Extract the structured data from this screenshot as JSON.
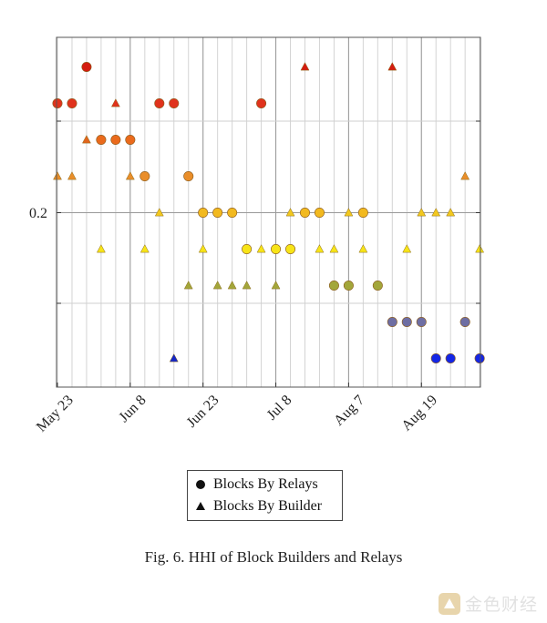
{
  "chart_data": {
    "type": "scatter",
    "title": "",
    "xlabel": "",
    "ylabel": "",
    "caption": "Fig. 6.  HHI of Block Builders and Relays",
    "x_tick_labels": [
      "May 23",
      "Jun 8",
      "Jun 23",
      "Jul 8",
      "Aug 7",
      "Aug 19"
    ],
    "y_tick_labels": [
      "0.2"
    ],
    "legend_position": "bottom-center",
    "grid": true,
    "series": [
      {
        "name": "Blocks By Relays",
        "marker": "circle",
        "points": [
          {
            "day": 0,
            "level": 3,
            "color": "#e0321c"
          },
          {
            "day": 1,
            "level": 3,
            "color": "#e0321c"
          },
          {
            "day": 2,
            "level": 4,
            "color": "#d41c10"
          },
          {
            "day": 3,
            "level": 2,
            "color": "#ea6a1c"
          },
          {
            "day": 4,
            "level": 2,
            "color": "#ea6a1c"
          },
          {
            "day": 5,
            "level": 2,
            "color": "#ea6a1c"
          },
          {
            "day": 6,
            "level": 1,
            "color": "#e98e2a"
          },
          {
            "day": 7,
            "level": 3,
            "color": "#e0321c"
          },
          {
            "day": 8,
            "level": 3,
            "color": "#e0321c"
          },
          {
            "day": 9,
            "level": 1,
            "color": "#e98e2a"
          },
          {
            "day": 10,
            "level": 0,
            "color": "#f2b91f"
          },
          {
            "day": 11,
            "level": 0,
            "color": "#f2b91f"
          },
          {
            "day": 12,
            "level": 0,
            "color": "#f2b91f"
          },
          {
            "day": 13,
            "level": -1,
            "color": "#f7e418"
          },
          {
            "day": 14,
            "level": 3,
            "color": "#e0321c"
          },
          {
            "day": 15,
            "level": -1,
            "color": "#f7e418"
          },
          {
            "day": 16,
            "level": -1,
            "color": "#f7e418"
          },
          {
            "day": 17,
            "level": 0,
            "color": "#f2b91f"
          },
          {
            "day": 18,
            "level": 0,
            "color": "#f2b91f"
          },
          {
            "day": 19,
            "level": -2,
            "color": "#a3a63a"
          },
          {
            "day": 20,
            "level": -2,
            "color": "#a3a63a"
          },
          {
            "day": 21,
            "level": 0,
            "color": "#f2b91f"
          },
          {
            "day": 22,
            "level": -2,
            "color": "#a3a63a"
          },
          {
            "day": 23,
            "level": -3,
            "color": "#6e6ea3"
          },
          {
            "day": 24,
            "level": -3,
            "color": "#6e6ea3"
          },
          {
            "day": 25,
            "level": -3,
            "color": "#6e6ea3"
          },
          {
            "day": 26,
            "level": -4,
            "color": "#1426e6"
          },
          {
            "day": 27,
            "level": -4,
            "color": "#1426e6"
          },
          {
            "day": 28,
            "level": -3,
            "color": "#6e6ea3"
          },
          {
            "day": 29,
            "level": -4,
            "color": "#1426e6"
          }
        ]
      },
      {
        "name": "Blocks By Builder",
        "marker": "triangle",
        "points": [
          {
            "day": 0,
            "level": 1,
            "color": "#e98e2a"
          },
          {
            "day": 1,
            "level": 1,
            "color": "#e98e2a"
          },
          {
            "day": 2,
            "level": 2,
            "color": "#e1651c"
          },
          {
            "day": 3,
            "level": -1,
            "color": "#f7e418"
          },
          {
            "day": 4,
            "level": 3,
            "color": "#e0321c"
          },
          {
            "day": 5,
            "level": 1,
            "color": "#e98e2a"
          },
          {
            "day": 6,
            "level": -1,
            "color": "#f7e418"
          },
          {
            "day": 7,
            "level": 0,
            "color": "#f2c81f"
          },
          {
            "day": 8,
            "level": -4,
            "color": "#1426c8"
          },
          {
            "day": 9,
            "level": -2,
            "color": "#a3a63a"
          },
          {
            "day": 10,
            "level": -1,
            "color": "#f7e418"
          },
          {
            "day": 11,
            "level": -2,
            "color": "#a3a63a"
          },
          {
            "day": 12,
            "level": -2,
            "color": "#a3a63a"
          },
          {
            "day": 13,
            "level": -2,
            "color": "#a3a63a"
          },
          {
            "day": 14,
            "level": -1,
            "color": "#f7e418"
          },
          {
            "day": 15,
            "level": -2,
            "color": "#a3a63a"
          },
          {
            "day": 16,
            "level": 0,
            "color": "#f2c81f"
          },
          {
            "day": 17,
            "level": 4,
            "color": "#d41c10"
          },
          {
            "day": 18,
            "level": -1,
            "color": "#f7e418"
          },
          {
            "day": 19,
            "level": -1,
            "color": "#f7e418"
          },
          {
            "day": 20,
            "level": 0,
            "color": "#f2c81f"
          },
          {
            "day": 21,
            "level": -1,
            "color": "#f7e418"
          },
          {
            "day": 23,
            "level": 4,
            "color": "#d41c10"
          },
          {
            "day": 24,
            "level": -1,
            "color": "#f7e418"
          },
          {
            "day": 25,
            "level": 0,
            "color": "#f2c81f"
          },
          {
            "day": 26,
            "level": 0,
            "color": "#f2c81f"
          },
          {
            "day": 27,
            "level": 0,
            "color": "#f2c81f"
          },
          {
            "day": 28,
            "level": 1,
            "color": "#e98e2a"
          },
          {
            "day": 29,
            "level": -1,
            "color": "#f7e418"
          }
        ]
      }
    ]
  },
  "watermark": {
    "text": "金色财经"
  }
}
